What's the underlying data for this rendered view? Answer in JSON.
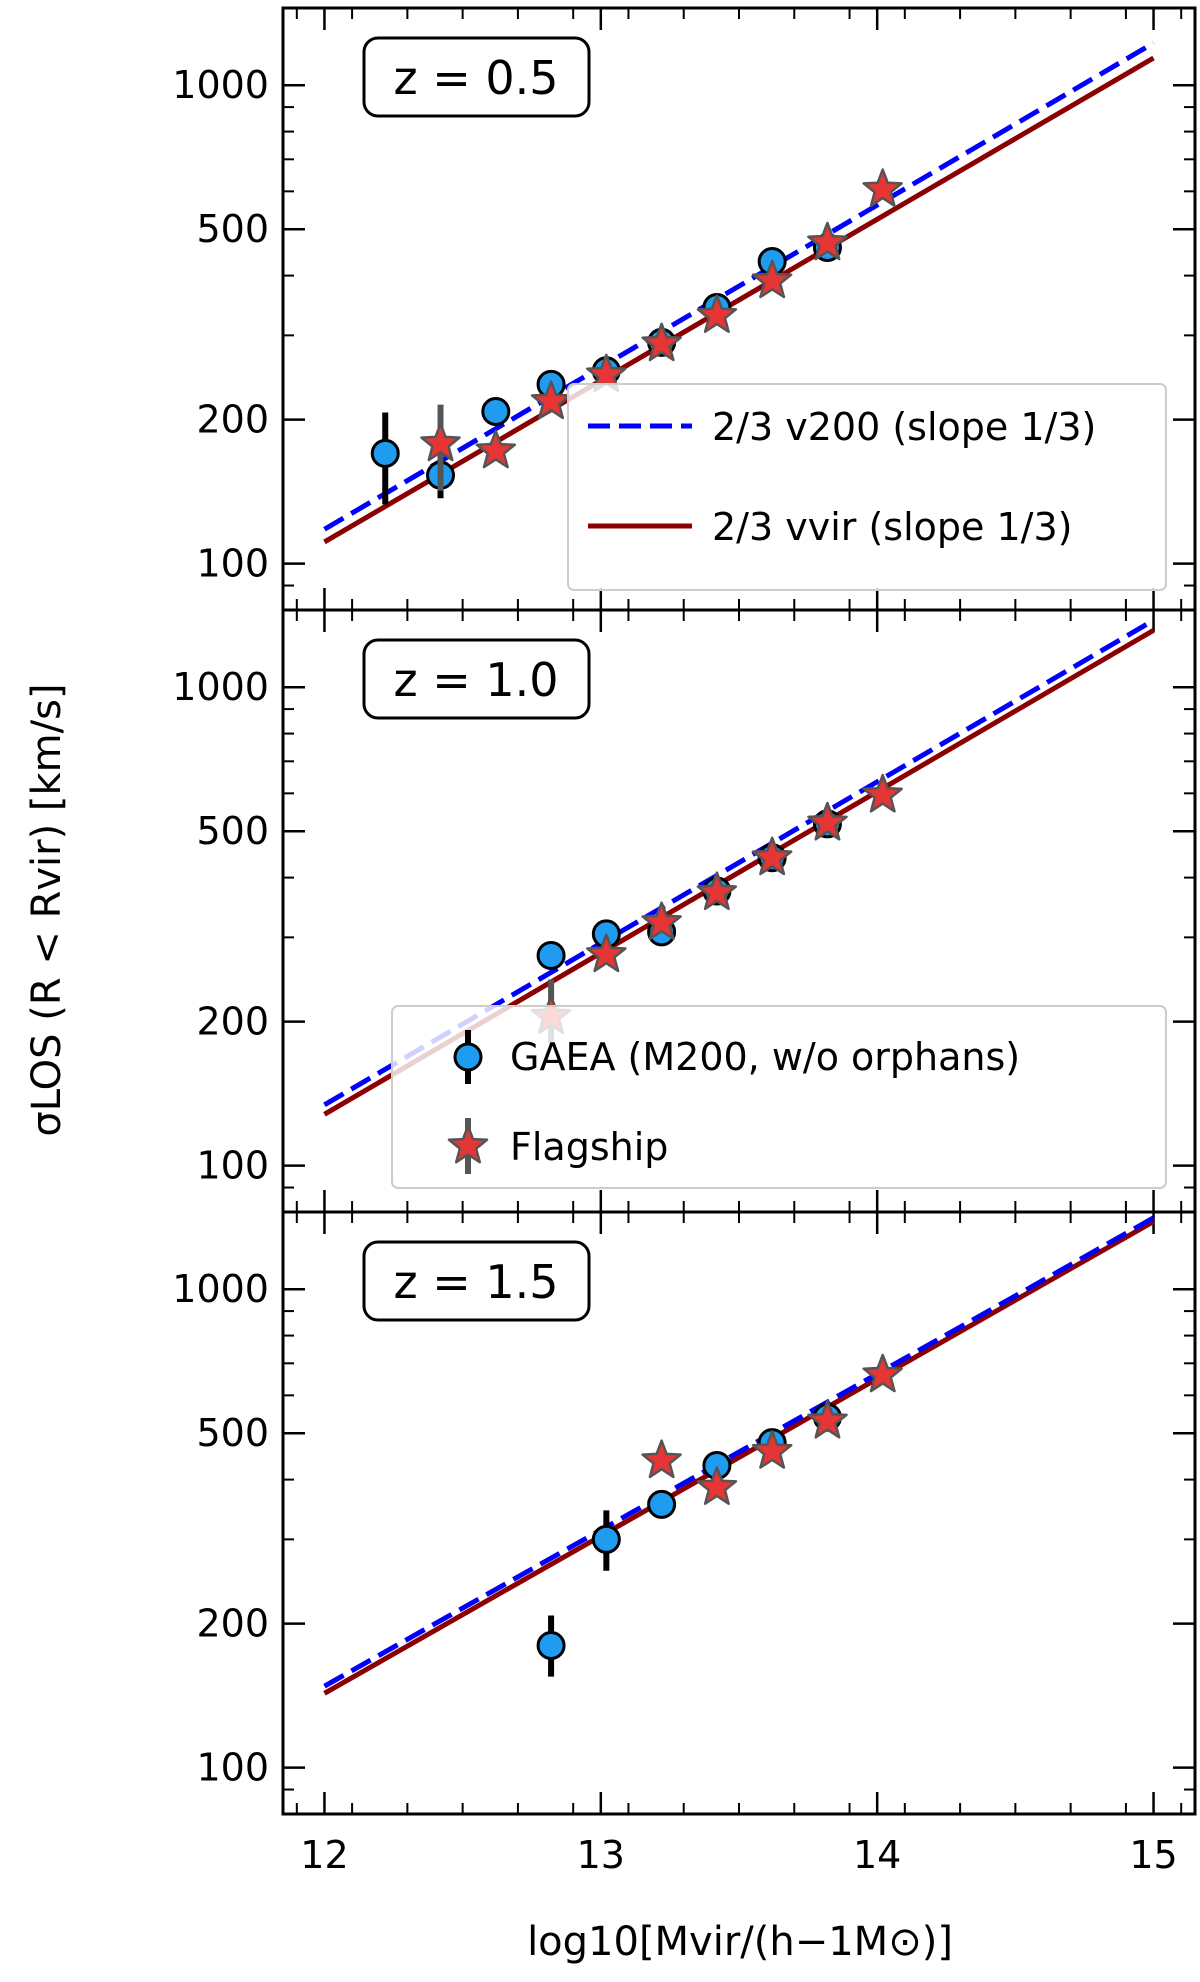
{
  "chart_data": {
    "type": "scatter",
    "x_axis": {
      "label": "log10[Mvir/(h−1M⊙)]",
      "range": [
        11.85,
        15.15
      ],
      "ticks": [
        "12",
        "13",
        "14",
        "15"
      ]
    },
    "y_axis": {
      "label": "σLOS (R < Rvir) [km/s]",
      "scale": "log",
      "range": [
        80,
        1450
      ],
      "ticks": [
        "100",
        "200",
        "500",
        "1000"
      ]
    },
    "legend_lines": {
      "v200": {
        "label": "2/3 v200 (slope 1/3)",
        "color": "#0000ff",
        "style": "dashed"
      },
      "vvir": {
        "label": "2/3 vvir (slope 1/3)",
        "color": "#8b0000",
        "style": "solid"
      }
    },
    "legend_points": {
      "gaea": {
        "label": "GAEA (M200, w/o orphans)",
        "color": "#1f9bf0"
      },
      "flagship": {
        "label": "Flagship",
        "color": "#e63535"
      }
    },
    "panels": [
      {
        "z_label": "z = 0.5",
        "legend": "lines",
        "v200_line": {
          "x": [
            12.0,
            15.0
          ],
          "y": [
            118,
            1225
          ]
        },
        "vvir_line": {
          "x": [
            12.0,
            15.0
          ],
          "y": [
            111,
            1140
          ]
        },
        "gaea": [
          {
            "x": 12.22,
            "y": 170,
            "lo": 133,
            "hi": 207
          },
          {
            "x": 12.42,
            "y": 153,
            "lo": 137,
            "hi": 175
          },
          {
            "x": 12.62,
            "y": 208
          },
          {
            "x": 12.82,
            "y": 237
          },
          {
            "x": 13.02,
            "y": 253
          },
          {
            "x": 13.22,
            "y": 290
          },
          {
            "x": 13.42,
            "y": 343
          },
          {
            "x": 13.62,
            "y": 428
          },
          {
            "x": 13.82,
            "y": 458
          }
        ],
        "flagship": [
          {
            "x": 12.42,
            "y": 178,
            "lo": 142,
            "hi": 215
          },
          {
            "x": 12.62,
            "y": 172
          },
          {
            "x": 12.82,
            "y": 218
          },
          {
            "x": 13.02,
            "y": 248
          },
          {
            "x": 13.22,
            "y": 288
          },
          {
            "x": 13.42,
            "y": 330
          },
          {
            "x": 13.62,
            "y": 390
          },
          {
            "x": 13.82,
            "y": 468
          },
          {
            "x": 14.02,
            "y": 605
          }
        ]
      },
      {
        "z_label": "z = 1.0",
        "legend": "points",
        "v200_line": {
          "x": [
            12.0,
            15.0
          ],
          "y": [
            134,
            1380
          ]
        },
        "vvir_line": {
          "x": [
            12.0,
            15.0
          ],
          "y": [
            128,
            1315
          ]
        },
        "gaea": [
          {
            "x": 12.82,
            "y": 275
          },
          {
            "x": 13.02,
            "y": 305
          },
          {
            "x": 13.22,
            "y": 308
          },
          {
            "x": 13.42,
            "y": 375
          },
          {
            "x": 13.62,
            "y": 440
          },
          {
            "x": 13.82,
            "y": 518
          }
        ],
        "flagship": [
          {
            "x": 12.82,
            "y": 205,
            "lo": 180,
            "hi": 245
          },
          {
            "x": 13.02,
            "y": 276
          },
          {
            "x": 13.22,
            "y": 322
          },
          {
            "x": 13.42,
            "y": 372
          },
          {
            "x": 13.62,
            "y": 440
          },
          {
            "x": 13.82,
            "y": 520
          },
          {
            "x": 14.02,
            "y": 595
          }
        ]
      },
      {
        "z_label": "z = 1.5",
        "legend": "none",
        "v200_line": {
          "x": [
            12.0,
            15.0
          ],
          "y": [
            148,
            1410
          ]
        },
        "vvir_line": {
          "x": [
            12.0,
            15.0
          ],
          "y": [
            143,
            1385
          ]
        },
        "gaea": [
          {
            "x": 12.82,
            "y": 180,
            "lo": 155,
            "hi": 208
          },
          {
            "x": 13.02,
            "y": 300,
            "lo": 258,
            "hi": 345
          },
          {
            "x": 13.22,
            "y": 355
          },
          {
            "x": 13.42,
            "y": 428
          },
          {
            "x": 13.62,
            "y": 478
          },
          {
            "x": 13.82,
            "y": 540
          }
        ],
        "flagship": [
          {
            "x": 13.22,
            "y": 438
          },
          {
            "x": 13.42,
            "y": 385
          },
          {
            "x": 13.62,
            "y": 458
          },
          {
            "x": 13.82,
            "y": 530
          },
          {
            "x": 14.02,
            "y": 662
          }
        ]
      }
    ]
  }
}
